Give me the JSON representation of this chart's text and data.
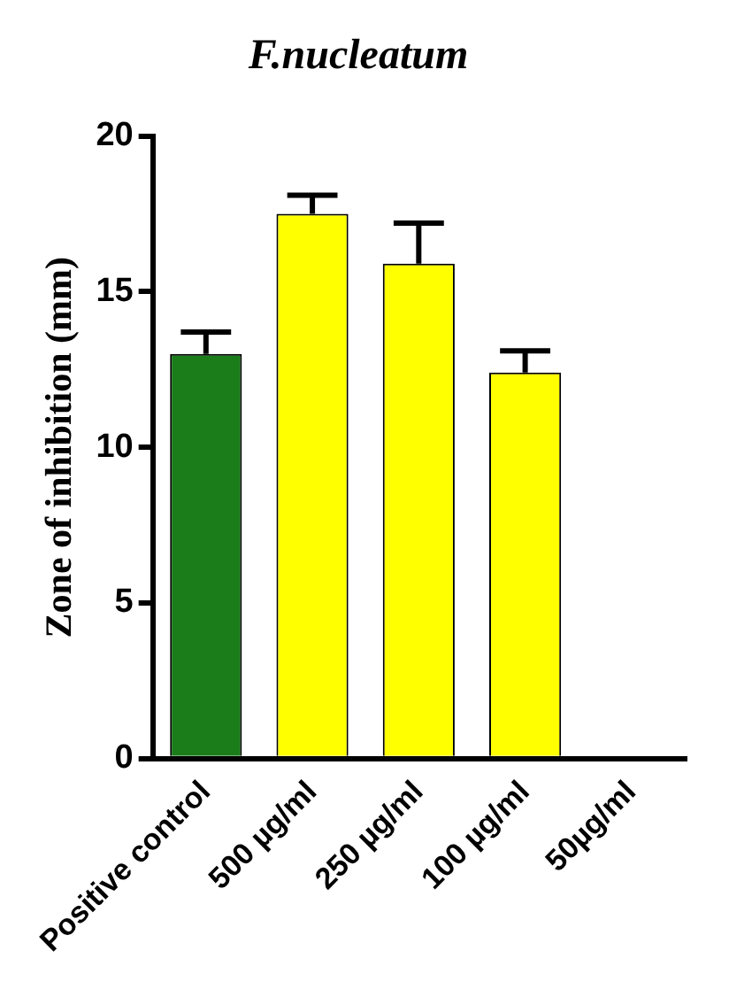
{
  "chart_data": {
    "type": "bar",
    "title": "F.nucleatum",
    "ylabel": "Zone of inhibition (mm)",
    "categories": [
      "Positive control",
      "500 µg/ml",
      "250 µg/ml",
      "100 µg/ml",
      "50µg/ml"
    ],
    "values": [
      13,
      17.5,
      15.9,
      12.4,
      0
    ],
    "colors": [
      "#1a7d1a",
      "#ffff00",
      "#ffff00",
      "#ffff00",
      "#ffff00"
    ],
    "errors": [
      [
        13,
        13.7
      ],
      [
        17.5,
        18.1
      ],
      [
        15.9,
        17.2
      ],
      [
        12.4,
        13.1
      ],
      null
    ],
    "ylim": [
      0,
      20
    ],
    "yticks": [
      0,
      5,
      10,
      15,
      20
    ],
    "grid": false,
    "legend": false
  }
}
